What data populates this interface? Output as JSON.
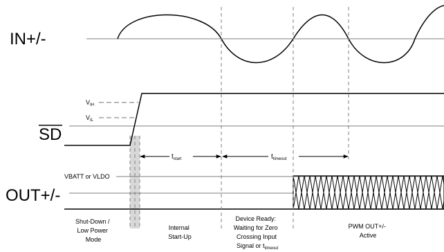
{
  "signals": {
    "in": "IN+/-",
    "sd": "SD",
    "out": "OUT+/-"
  },
  "thresholds": {
    "vih": {
      "main": "V",
      "sub": "IH"
    },
    "vil": {
      "main": "V",
      "sub": "IL"
    }
  },
  "supply_label": "VBATT or VLDO",
  "intervals": {
    "tstart": {
      "main": "t",
      "sub": "start"
    },
    "ttimeout": {
      "main": "t",
      "sub": "timeout"
    }
  },
  "phases": {
    "shutdown": [
      "Shut-Down /",
      "Low Power",
      "Mode"
    ],
    "startup": [
      "Internal",
      "Start-Up"
    ],
    "ready": [
      "Device Ready:",
      "Waiting for Zero",
      "Crossing Input"
    ],
    "ready_last": {
      "main": "Signal or t",
      "sub": "timeout"
    },
    "pwm": [
      "PWM OUT+/-",
      "Active"
    ]
  }
}
